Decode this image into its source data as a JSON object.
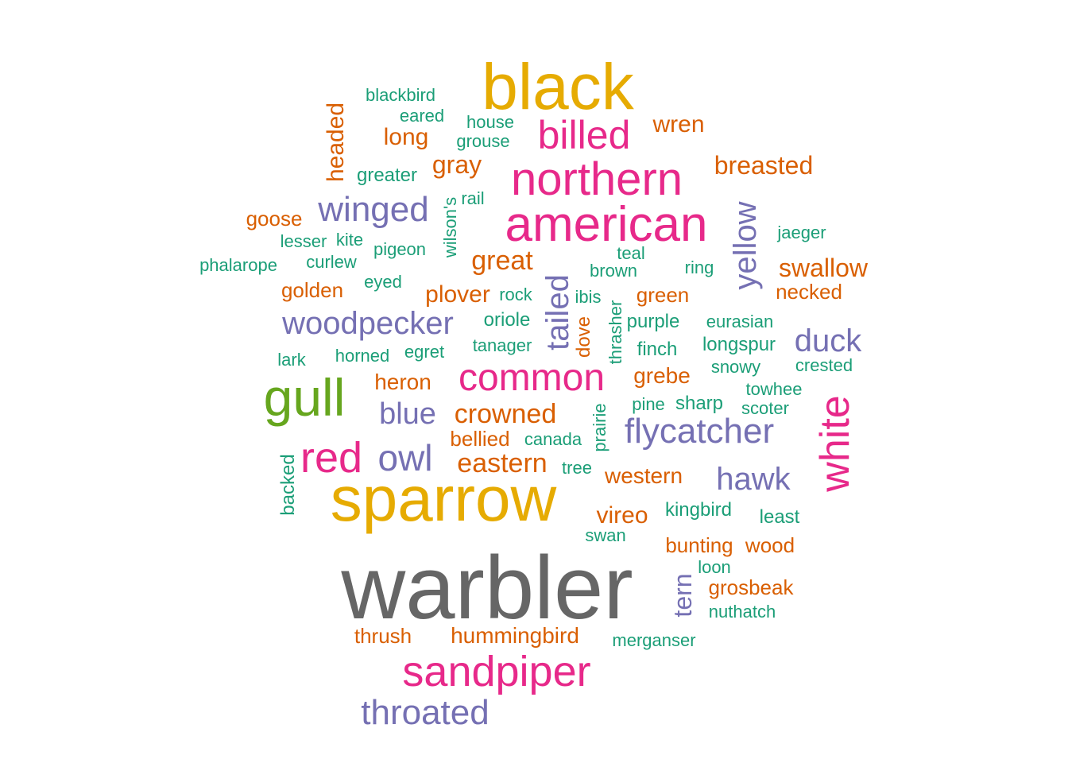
{
  "palette": {
    "teal": "#1b9e77",
    "orange": "#d95f02",
    "purple": "#7570b3",
    "pink": "#e7298a",
    "green": "#66a61e",
    "gold": "#e6ab02",
    "gray": "#666666"
  },
  "words": [
    {
      "text": "warbler",
      "color": "gray"
    },
    {
      "text": "sparrow",
      "color": "gold"
    },
    {
      "text": "black",
      "color": "gold"
    },
    {
      "text": "american",
      "color": "pink"
    },
    {
      "text": "gull",
      "color": "green"
    },
    {
      "text": "white",
      "color": "pink"
    },
    {
      "text": "northern",
      "color": "pink"
    },
    {
      "text": "sandpiper",
      "color": "pink"
    },
    {
      "text": "red",
      "color": "pink"
    },
    {
      "text": "common",
      "color": "pink"
    },
    {
      "text": "billed",
      "color": "pink"
    },
    {
      "text": "throated",
      "color": "purple"
    },
    {
      "text": "flycatcher",
      "color": "purple"
    },
    {
      "text": "owl",
      "color": "purple"
    },
    {
      "text": "tailed",
      "color": "purple"
    },
    {
      "text": "yellow",
      "color": "purple"
    },
    {
      "text": "winged",
      "color": "purple"
    },
    {
      "text": "woodpecker",
      "color": "purple"
    },
    {
      "text": "duck",
      "color": "purple"
    },
    {
      "text": "hawk",
      "color": "purple"
    },
    {
      "text": "blue",
      "color": "purple"
    },
    {
      "text": "tern",
      "color": "purple"
    },
    {
      "text": "crowned",
      "color": "orange"
    },
    {
      "text": "eastern",
      "color": "orange"
    },
    {
      "text": "great",
      "color": "orange"
    },
    {
      "text": "breasted",
      "color": "orange"
    },
    {
      "text": "swallow",
      "color": "orange"
    },
    {
      "text": "hummingbird",
      "color": "orange"
    },
    {
      "text": "wren",
      "color": "orange"
    },
    {
      "text": "gray",
      "color": "orange"
    },
    {
      "text": "plover",
      "color": "orange"
    },
    {
      "text": "vireo",
      "color": "orange"
    },
    {
      "text": "western",
      "color": "orange"
    },
    {
      "text": "heron",
      "color": "orange"
    },
    {
      "text": "grebe",
      "color": "orange"
    },
    {
      "text": "long",
      "color": "orange"
    },
    {
      "text": "headed",
      "color": "orange"
    },
    {
      "text": "goose",
      "color": "orange"
    },
    {
      "text": "golden",
      "color": "orange"
    },
    {
      "text": "necked",
      "color": "orange"
    },
    {
      "text": "green",
      "color": "orange"
    },
    {
      "text": "bellied",
      "color": "orange"
    },
    {
      "text": "bunting",
      "color": "orange"
    },
    {
      "text": "wood",
      "color": "orange"
    },
    {
      "text": "grosbeak",
      "color": "orange"
    },
    {
      "text": "thrush",
      "color": "orange"
    },
    {
      "text": "dove",
      "color": "orange"
    },
    {
      "text": "blackbird",
      "color": "teal"
    },
    {
      "text": "eared",
      "color": "teal"
    },
    {
      "text": "house",
      "color": "teal"
    },
    {
      "text": "grouse",
      "color": "teal"
    },
    {
      "text": "greater",
      "color": "teal"
    },
    {
      "text": "wilson's",
      "color": "teal"
    },
    {
      "text": "rail",
      "color": "teal"
    },
    {
      "text": "lesser",
      "color": "teal"
    },
    {
      "text": "kite",
      "color": "teal"
    },
    {
      "text": "pigeon",
      "color": "teal"
    },
    {
      "text": "jaeger",
      "color": "teal"
    },
    {
      "text": "phalarope",
      "color": "teal"
    },
    {
      "text": "curlew",
      "color": "teal"
    },
    {
      "text": "teal",
      "color": "teal"
    },
    {
      "text": "brown",
      "color": "teal"
    },
    {
      "text": "ring",
      "color": "teal"
    },
    {
      "text": "eyed",
      "color": "teal"
    },
    {
      "text": "rock",
      "color": "teal"
    },
    {
      "text": "ibis",
      "color": "teal"
    },
    {
      "text": "oriole",
      "color": "teal"
    },
    {
      "text": "thrasher",
      "color": "teal"
    },
    {
      "text": "purple",
      "color": "teal"
    },
    {
      "text": "eurasian",
      "color": "teal"
    },
    {
      "text": "lark",
      "color": "teal"
    },
    {
      "text": "horned",
      "color": "teal"
    },
    {
      "text": "egret",
      "color": "teal"
    },
    {
      "text": "tanager",
      "color": "teal"
    },
    {
      "text": "finch",
      "color": "teal"
    },
    {
      "text": "longspur",
      "color": "teal"
    },
    {
      "text": "snowy",
      "color": "teal"
    },
    {
      "text": "crested",
      "color": "teal"
    },
    {
      "text": "towhee",
      "color": "teal"
    },
    {
      "text": "pine",
      "color": "teal"
    },
    {
      "text": "sharp",
      "color": "teal"
    },
    {
      "text": "scoter",
      "color": "teal"
    },
    {
      "text": "prairie",
      "color": "teal"
    },
    {
      "text": "canada",
      "color": "teal"
    },
    {
      "text": "backed",
      "color": "teal"
    },
    {
      "text": "tree",
      "color": "teal"
    },
    {
      "text": "kingbird",
      "color": "teal"
    },
    {
      "text": "least",
      "color": "teal"
    },
    {
      "text": "swan",
      "color": "teal"
    },
    {
      "text": "loon",
      "color": "teal"
    },
    {
      "text": "nuthatch",
      "color": "teal"
    },
    {
      "text": "merganser",
      "color": "teal"
    }
  ]
}
